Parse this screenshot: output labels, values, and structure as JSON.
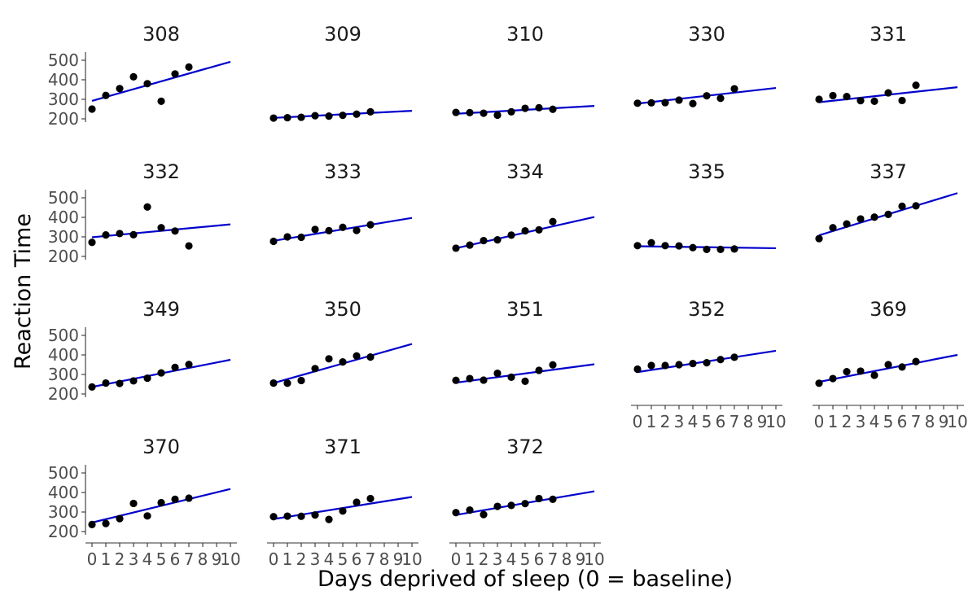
{
  "chart_data": {
    "type": "scatter",
    "layout": "facet-grid",
    "xlabel": "Days deprived of sleep (0 = baseline)",
    "ylabel": "Reaction Time",
    "xlim": [
      0,
      10
    ],
    "ylim": [
      200,
      500
    ],
    "xticks": [
      0,
      1,
      2,
      3,
      4,
      5,
      6,
      7,
      8,
      9,
      10
    ],
    "yticks": [
      200,
      300,
      400,
      500
    ],
    "grid": false,
    "point_color": "#000000",
    "line_color": "#0000cc",
    "panels": [
      {
        "title": "308",
        "x": [
          0,
          1,
          2,
          3,
          4,
          5,
          6,
          7
        ],
        "y": [
          250,
          320,
          355,
          415,
          380,
          290,
          430,
          465
        ],
        "fit": [
          [
            0,
            292
          ],
          [
            10,
            492
          ]
        ]
      },
      {
        "title": "309",
        "x": [
          0,
          1,
          2,
          3,
          4,
          5,
          6,
          7
        ],
        "y": [
          204,
          206,
          208,
          216,
          214,
          218,
          224,
          236
        ],
        "fit": [
          [
            0,
            205
          ],
          [
            10,
            241
          ]
        ]
      },
      {
        "title": "310",
        "x": [
          0,
          1,
          2,
          3,
          4,
          5,
          6,
          7
        ],
        "y": [
          233,
          232,
          229,
          219,
          236,
          254,
          257,
          249
        ],
        "fit": [
          [
            0,
            226
          ],
          [
            10,
            266
          ]
        ]
      },
      {
        "title": "330",
        "x": [
          0,
          1,
          2,
          3,
          4,
          5,
          6,
          7
        ],
        "y": [
          280,
          282,
          283,
          296,
          278,
          318,
          305,
          354
        ],
        "fit": [
          [
            0,
            278
          ],
          [
            10,
            358
          ]
        ]
      },
      {
        "title": "331",
        "x": [
          0,
          1,
          2,
          3,
          4,
          5,
          6,
          7
        ],
        "y": [
          300,
          319,
          314,
          293,
          290,
          333,
          294,
          372
        ],
        "fit": [
          [
            0,
            285
          ],
          [
            10,
            362
          ]
        ]
      },
      {
        "title": "332",
        "x": [
          0,
          1,
          2,
          3,
          4,
          5,
          6,
          7
        ],
        "y": [
          272,
          310,
          317,
          311,
          453,
          347,
          330,
          254
        ],
        "fit": [
          [
            0,
            298
          ],
          [
            10,
            364
          ]
        ]
      },
      {
        "title": "333",
        "x": [
          0,
          1,
          2,
          3,
          4,
          5,
          6,
          7
        ],
        "y": [
          277,
          300,
          298,
          338,
          332,
          349,
          333,
          362
        ],
        "fit": [
          [
            0,
            280
          ],
          [
            10,
            397
          ]
        ]
      },
      {
        "title": "334",
        "x": [
          0,
          1,
          2,
          3,
          4,
          5,
          6,
          7
        ],
        "y": [
          242,
          258,
          281,
          285,
          309,
          331,
          336,
          378
        ],
        "fit": [
          [
            0,
            242
          ],
          [
            10,
            402
          ]
        ]
      },
      {
        "title": "335",
        "x": [
          0,
          1,
          2,
          3,
          4,
          5,
          6,
          7
        ],
        "y": [
          255,
          270,
          255,
          254,
          245,
          236,
          236,
          238
        ],
        "fit": [
          [
            0,
            252
          ],
          [
            10,
            242
          ]
        ]
      },
      {
        "title": "337",
        "x": [
          0,
          1,
          2,
          3,
          4,
          5,
          6,
          7
        ],
        "y": [
          291,
          347,
          366,
          392,
          401,
          415,
          457,
          459
        ],
        "fit": [
          [
            0,
            308
          ],
          [
            10,
            524
          ]
        ]
      },
      {
        "title": "349",
        "x": [
          0,
          1,
          2,
          3,
          4,
          5,
          6,
          7
        ],
        "y": [
          236,
          256,
          254,
          267,
          281,
          308,
          336,
          351
        ],
        "fit": [
          [
            0,
            236
          ],
          [
            10,
            375
          ]
        ]
      },
      {
        "title": "350",
        "x": [
          0,
          1,
          2,
          3,
          4,
          5,
          6,
          7
        ],
        "y": [
          256,
          255,
          269,
          330,
          380,
          364,
          395,
          389
        ],
        "fit": [
          [
            0,
            256
          ],
          [
            10,
            456
          ]
        ]
      },
      {
        "title": "351",
        "x": [
          0,
          1,
          2,
          3,
          4,
          5,
          6,
          7
        ],
        "y": [
          270,
          279,
          271,
          306,
          286,
          265,
          321,
          349
        ],
        "fit": [
          [
            0,
            258
          ],
          [
            10,
            352
          ]
        ]
      },
      {
        "title": "352",
        "x": [
          0,
          1,
          2,
          3,
          4,
          5,
          6,
          7
        ],
        "y": [
          327,
          346,
          346,
          350,
          356,
          360,
          376,
          388
        ],
        "fit": [
          [
            0,
            312
          ],
          [
            10,
            421
          ]
        ]
      },
      {
        "title": "369",
        "x": [
          0,
          1,
          2,
          3,
          4,
          5,
          6,
          7
        ],
        "y": [
          255,
          279,
          314,
          317,
          296,
          350,
          338,
          366
        ],
        "fit": [
          [
            0,
            262
          ],
          [
            10,
            400
          ]
        ]
      },
      {
        "title": "370",
        "x": [
          0,
          1,
          2,
          3,
          4,
          5,
          6,
          7
        ],
        "y": [
          236,
          241,
          266,
          344,
          280,
          348,
          365,
          371
        ],
        "fit": [
          [
            0,
            246
          ],
          [
            10,
            418
          ]
        ]
      },
      {
        "title": "371",
        "x": [
          0,
          1,
          2,
          3,
          4,
          5,
          6,
          7
        ],
        "y": [
          276,
          279,
          278,
          285,
          262,
          305,
          350,
          369
        ],
        "fit": [
          [
            0,
            264
          ],
          [
            10,
            377
          ]
        ]
      },
      {
        "title": "372",
        "x": [
          0,
          1,
          2,
          3,
          4,
          5,
          6,
          7
        ],
        "y": [
          297,
          310,
          287,
          329,
          334,
          343,
          369,
          365
        ],
        "fit": [
          [
            0,
            285
          ],
          [
            10,
            406
          ]
        ]
      }
    ]
  }
}
